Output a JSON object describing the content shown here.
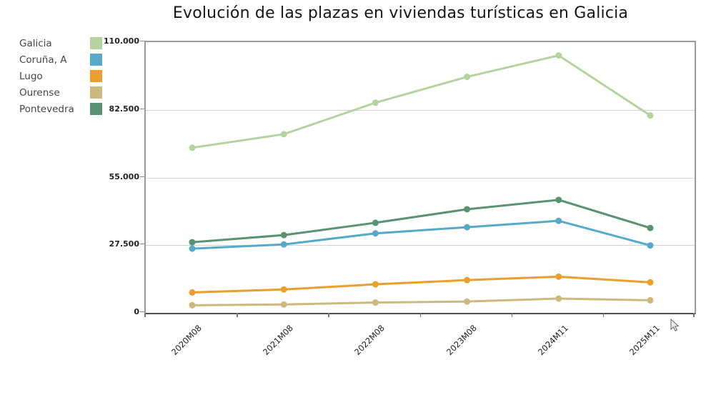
{
  "title": "Evolución de las plazas en viviendas turísticas en Galicia",
  "chart_data": {
    "type": "line",
    "x": [
      "2020M08",
      "2021M08",
      "2022M08",
      "2023M08",
      "2024M11",
      "2025M11"
    ],
    "series": [
      {
        "name": "Galicia",
        "color": "#b4d39f",
        "values": [
          67100,
          72600,
          85400,
          95900,
          104600,
          80200
        ]
      },
      {
        "name": "Coruña, A",
        "color": "#56aac9",
        "values": [
          26100,
          27800,
          32300,
          34800,
          37400,
          27400
        ]
      },
      {
        "name": "Lugo",
        "color": "#eb9f2c",
        "values": [
          8300,
          9500,
          11600,
          13300,
          14700,
          12400
        ]
      },
      {
        "name": "Ourense",
        "color": "#cbb97e",
        "values": [
          3100,
          3400,
          4200,
          4600,
          5800,
          5100
        ]
      },
      {
        "name": "Pontevedra",
        "color": "#5a9372",
        "values": [
          28700,
          31600,
          36600,
          42100,
          45900,
          34500
        ]
      }
    ],
    "ylim": [
      0,
      110000
    ],
    "yticks": [
      {
        "value": 110000,
        "label": "110.000"
      },
      {
        "value": 82500,
        "label": "82.500"
      },
      {
        "value": 55000,
        "label": "55.000"
      },
      {
        "value": 27500,
        "label": "27.500"
      },
      {
        "value": 0,
        "label": "0"
      }
    ],
    "grid": true,
    "legend_position": "left"
  }
}
